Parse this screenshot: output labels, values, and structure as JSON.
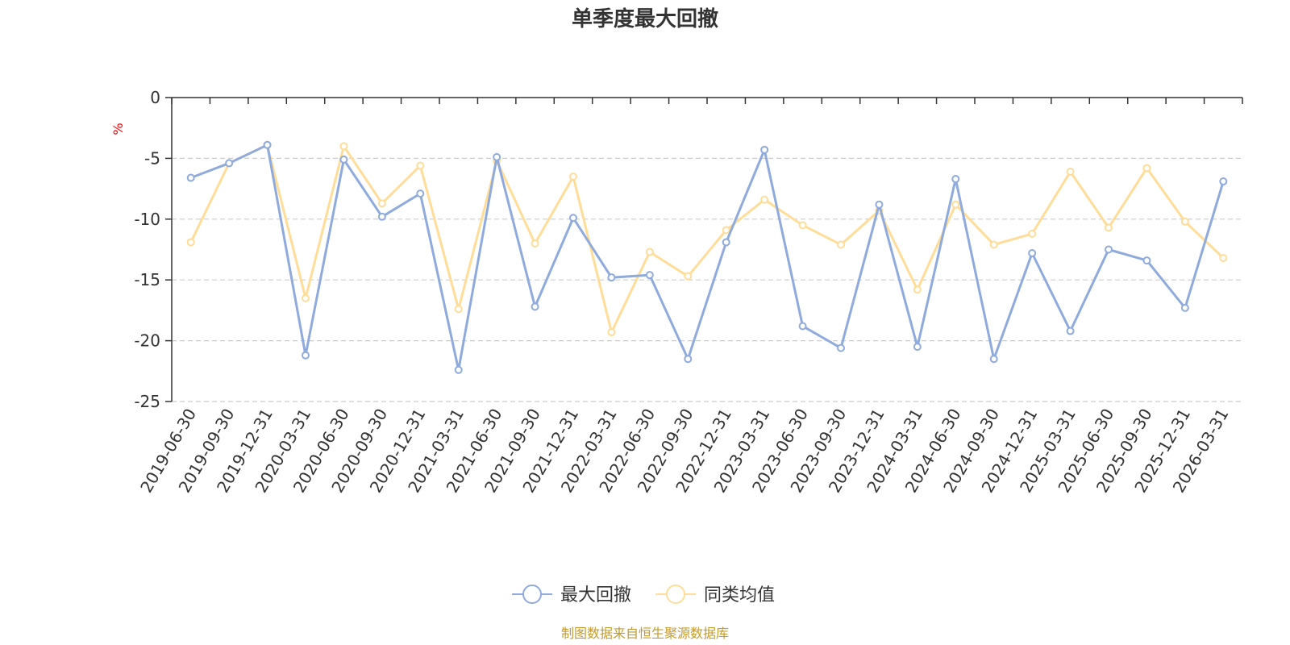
{
  "chart_data": {
    "type": "line",
    "title": "单季度最大回撤",
    "unit_label": "%",
    "ylim": [
      -25,
      0
    ],
    "yticks": [
      0,
      -5,
      -10,
      -15,
      -20,
      -25
    ],
    "grid": "horizontal-dashed",
    "legend_position": "bottom-center",
    "categories": [
      "2019-06-30",
      "2019-09-30",
      "2019-12-31",
      "2020-03-31",
      "2020-06-30",
      "2020-09-30",
      "2020-12-31",
      "2021-03-31",
      "2021-06-30",
      "2021-09-30",
      "2021-12-31",
      "2022-03-31",
      "2022-06-30",
      "2022-09-30",
      "2022-12-31",
      "2023-03-31",
      "2023-06-30",
      "2023-09-30",
      "2023-12-31",
      "2024-03-31",
      "2024-06-30",
      "2024-09-30",
      "2024-12-31",
      "2025-03-31",
      "2025-06-30",
      "2025-09-30",
      "2025-12-31",
      "2026-03-31"
    ],
    "series": [
      {
        "name": "最大回撤",
        "color": "#8faadc",
        "values": [
          -6.6,
          -5.4,
          -3.9,
          -21.2,
          -5.1,
          -9.8,
          -7.9,
          -22.4,
          -4.9,
          -17.2,
          -9.9,
          -14.8,
          -14.6,
          -21.5,
          -11.9,
          -4.3,
          -18.8,
          -20.6,
          -8.8,
          -20.5,
          -6.7,
          -21.5,
          -12.8,
          -19.2,
          -12.5,
          -13.4,
          -17.3,
          -6.9
        ]
      },
      {
        "name": "同类均值",
        "color": "#ffdd99",
        "values": [
          -11.9,
          -5.4,
          -3.9,
          -16.5,
          -4.0,
          -8.7,
          -5.6,
          -17.4,
          -5.2,
          -12.0,
          -6.5,
          -19.3,
          -12.7,
          -14.7,
          -10.9,
          -8.4,
          -10.5,
          -12.1,
          -9.3,
          -15.8,
          -8.8,
          -12.1,
          -11.2,
          -6.1,
          -10.7,
          -5.8,
          -10.2,
          -13.2
        ]
      }
    ]
  },
  "footer": {
    "source": "制图数据来自恒生聚源数据库"
  }
}
